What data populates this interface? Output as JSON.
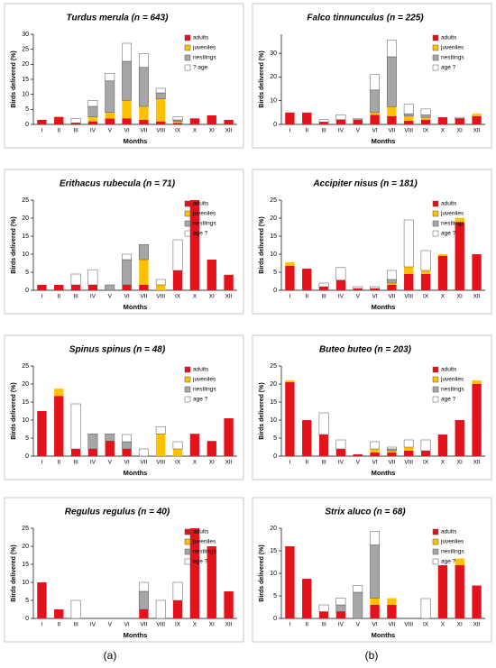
{
  "chart_data": [
    {
      "type": "bar",
      "stacked": true,
      "title": "Turdus merula (n = 643)",
      "ylabel": "Birds delivered (%)",
      "xlabel": "Months",
      "categories": [
        "I",
        "II",
        "III",
        "IV",
        "V",
        "VI",
        "VII",
        "VIII",
        "IX",
        "X",
        "XI",
        "XII"
      ],
      "ylim": [
        0,
        30
      ],
      "yticks": [
        0,
        5,
        10,
        15,
        20,
        25,
        30
      ],
      "series": [
        {
          "name": "adults",
          "color": "#e3121b",
          "values": [
            1.5,
            2.5,
            0.5,
            1,
            2,
            2,
            1.5,
            1,
            0.5,
            2,
            3,
            1.5
          ]
        },
        {
          "name": "juveniles",
          "color": "#ffc000",
          "values": [
            0,
            0,
            0,
            1.5,
            2,
            6,
            4.5,
            7.5,
            0.5,
            0,
            0,
            0
          ]
        },
        {
          "name": "nestlings",
          "color": "#a6a6a6",
          "values": [
            0,
            0,
            0,
            3.5,
            10.5,
            13,
            13,
            2,
            0.5,
            0,
            0,
            0
          ]
        },
        {
          "name": "? age",
          "color": "#ffffff",
          "values": [
            0,
            0,
            1.5,
            2,
            2.5,
            6,
            4.5,
            1.5,
            1,
            0,
            0,
            0
          ]
        }
      ]
    },
    {
      "type": "bar",
      "stacked": true,
      "title": "Falco tinnunculus (n = 225)",
      "ylabel": "Birds delivered (%)",
      "xlabel": "Months",
      "categories": [
        "I",
        "II",
        "III",
        "IV",
        "V",
        "VI",
        "VII",
        "VIII",
        "IX",
        "X",
        "XI",
        "XII"
      ],
      "ylim": [
        0,
        38
      ],
      "yticks": [
        0,
        10,
        20,
        30
      ],
      "series": [
        {
          "name": "adults",
          "color": "#e3121b",
          "values": [
            5,
            5,
            1,
            2,
            2,
            4,
            3.5,
            1.5,
            2,
            3,
            2.5,
            3.5
          ]
        },
        {
          "name": "juveniles",
          "color": "#ffc000",
          "values": [
            0,
            0,
            0,
            0,
            0,
            1,
            4,
            2,
            1,
            0,
            0,
            1
          ]
        },
        {
          "name": "nestlings",
          "color": "#a6a6a6",
          "values": [
            0,
            0,
            0,
            0,
            0,
            9.5,
            21,
            1,
            1,
            0,
            0,
            0
          ]
        },
        {
          "name": "age ?",
          "color": "#ffffff",
          "values": [
            0,
            0,
            1,
            2,
            0.5,
            6.5,
            7,
            4,
            2.5,
            0,
            0.5,
            0
          ]
        }
      ]
    },
    {
      "type": "bar",
      "stacked": true,
      "title": "Erithacus  rubecula (n = 71)",
      "ylabel": "Birds delivered (%)",
      "xlabel": "Months",
      "categories": [
        "I",
        "II",
        "III",
        "IV",
        "V",
        "VI",
        "VII",
        "VIII",
        "IX",
        "X",
        "XI",
        "XII"
      ],
      "ylim": [
        0,
        25
      ],
      "yticks": [
        0,
        5,
        10,
        15,
        20,
        25
      ],
      "series": [
        {
          "name": "adults",
          "color": "#e3121b",
          "values": [
            1.5,
            1.5,
            1.5,
            1.5,
            0,
            1.5,
            1.5,
            0,
            5.5,
            25,
            8.5,
            4.3
          ]
        },
        {
          "name": "juveniles",
          "color": "#ffc000",
          "values": [
            0,
            0,
            0,
            0,
            0,
            0,
            7,
            1.5,
            0,
            0,
            0,
            0
          ]
        },
        {
          "name": "nestlings",
          "color": "#a6a6a6",
          "values": [
            0,
            0,
            0,
            0,
            1.5,
            7,
            4.2,
            0,
            0,
            0,
            0,
            0
          ]
        },
        {
          "name": "age ?",
          "color": "#ffffff",
          "values": [
            0,
            0,
            3,
            4.2,
            0,
            1.5,
            0,
            1.5,
            8.5,
            0,
            0,
            0
          ]
        }
      ]
    },
    {
      "type": "bar",
      "stacked": true,
      "title": "Accipiter nisus (n = 181)",
      "ylabel": "Birds delivered (%)",
      "xlabel": "Months",
      "categories": [
        "I",
        "II",
        "III",
        "IV",
        "V",
        "VI",
        "VII",
        "VIII",
        "IX",
        "X",
        "XI",
        "XII"
      ],
      "ylim": [
        0,
        25
      ],
      "yticks": [
        0,
        5,
        10,
        15,
        20,
        25
      ],
      "series": [
        {
          "name": "adults",
          "color": "#e3121b",
          "values": [
            6.8,
            6,
            1,
            2.8,
            0.5,
            0.5,
            1.5,
            4.5,
            4.5,
            9.5,
            18.8,
            10
          ]
        },
        {
          "name": "juveniles",
          "color": "#ffc000",
          "values": [
            1,
            0,
            0,
            0,
            0,
            0,
            0.5,
            2,
            1,
            0.5,
            1.3,
            0
          ]
        },
        {
          "name": "nestlings",
          "color": "#a6a6a6",
          "values": [
            0,
            0,
            0,
            0,
            0,
            0,
            1,
            0,
            0,
            0,
            0,
            0
          ]
        },
        {
          "name": "age ?",
          "color": "#ffffff",
          "values": [
            0,
            0,
            1,
            3.5,
            0.5,
            0.5,
            2.5,
            13,
            5.5,
            0,
            0,
            0
          ]
        }
      ]
    },
    {
      "type": "bar",
      "stacked": true,
      "title": "Spinus spinus (n = 48)",
      "ylabel": "Birds delivered (%)",
      "xlabel": "Months",
      "categories": [
        "I",
        "II",
        "III",
        "IV",
        "V",
        "VI",
        "VII",
        "VIII",
        "IX",
        "X",
        "XI",
        "XII"
      ],
      "ylim": [
        0,
        25
      ],
      "yticks": [
        0,
        5,
        10,
        15,
        20,
        25
      ],
      "series": [
        {
          "name": "adults",
          "color": "#e3121b",
          "values": [
            12.5,
            16.7,
            2,
            2,
            4.2,
            2,
            0,
            0,
            0,
            6.2,
            4.2,
            10.5
          ]
        },
        {
          "name": "juveniles",
          "color": "#ffc000",
          "values": [
            0,
            2,
            0,
            0,
            0,
            0,
            0,
            6.2,
            2,
            0,
            0,
            0
          ]
        },
        {
          "name": "nestlings",
          "color": "#a6a6a6",
          "values": [
            0,
            0,
            0,
            4.2,
            2,
            2,
            0,
            0,
            0,
            0,
            0,
            0
          ]
        },
        {
          "name": "age ?",
          "color": "#ffffff",
          "values": [
            0,
            0,
            12.5,
            0,
            0,
            2,
            2,
            2,
            2,
            0,
            0,
            0
          ]
        }
      ]
    },
    {
      "type": "bar",
      "stacked": true,
      "title": "Buteo buteo (n = 203)",
      "ylabel": "Birds delivered (%)",
      "xlabel": "Months",
      "categories": [
        "I",
        "II",
        "III",
        "IV",
        "V",
        "VI",
        "VII",
        "VIII",
        "IX",
        "X",
        "XI",
        "XII"
      ],
      "ylim": [
        0,
        25
      ],
      "yticks": [
        0,
        5,
        10,
        15,
        20,
        25
      ],
      "series": [
        {
          "name": "adults",
          "color": "#e3121b",
          "values": [
            20.5,
            10,
            6,
            2,
            0.5,
            1,
            1,
            1.5,
            1.5,
            6,
            10,
            20
          ]
        },
        {
          "name": "juveniles",
          "color": "#ffc000",
          "values": [
            0.5,
            0,
            0,
            0,
            0,
            1,
            0.5,
            1,
            0,
            0,
            0,
            1
          ]
        },
        {
          "name": "nestlings",
          "color": "#a6a6a6",
          "values": [
            0,
            0,
            0,
            0,
            0,
            0,
            0.5,
            0,
            0,
            0,
            0,
            0
          ]
        },
        {
          "name": "age ?",
          "color": "#ffffff",
          "values": [
            0,
            0,
            6,
            2.5,
            0,
            2,
            0.5,
            2,
            3,
            0,
            0,
            0
          ]
        }
      ]
    },
    {
      "type": "bar",
      "stacked": true,
      "title": "Regulus regulus (n = 40)",
      "ylabel": "Birds delivered (%)",
      "xlabel": "Months",
      "categories": [
        "I",
        "II",
        "III",
        "IV",
        "V",
        "VI",
        "VII",
        "VIII",
        "IX",
        "X",
        "XI",
        "XII"
      ],
      "ylim": [
        0,
        25
      ],
      "yticks": [
        0,
        5,
        10,
        15,
        20,
        25
      ],
      "series": [
        {
          "name": "adults",
          "color": "#e3121b",
          "values": [
            10,
            2.5,
            0,
            0,
            0,
            0,
            2.5,
            0,
            5,
            25,
            20,
            7.5
          ]
        },
        {
          "name": "juveniles",
          "color": "#ffc000",
          "values": [
            0,
            0,
            0,
            0,
            0,
            0,
            0,
            0,
            0,
            0,
            0,
            0
          ]
        },
        {
          "name": "nestlings",
          "color": "#a6a6a6",
          "values": [
            0,
            0,
            0,
            0,
            0,
            0,
            5,
            0,
            0,
            0,
            0,
            0
          ]
        },
        {
          "name": "age ?",
          "color": "#ffffff",
          "values": [
            0,
            0,
            5,
            0,
            0,
            0,
            2.5,
            5,
            5,
            0,
            0,
            0
          ]
        }
      ]
    },
    {
      "type": "bar",
      "stacked": true,
      "title": "Strix aluco (n = 68)",
      "ylabel": "Birds delivered (%)",
      "xlabel": "Months",
      "categories": [
        "I",
        "II",
        "III",
        "IV",
        "V",
        "VI",
        "VII",
        "VIII",
        "IX",
        "X",
        "XI",
        "XII"
      ],
      "ylim": [
        0,
        20
      ],
      "yticks": [
        0,
        5,
        10,
        15,
        20
      ],
      "series": [
        {
          "name": "adults",
          "color": "#e3121b",
          "values": [
            16,
            8.8,
            1.5,
            1.5,
            0,
            3,
            3,
            0,
            0,
            11.8,
            11.8,
            7.3
          ]
        },
        {
          "name": "juveniles",
          "color": "#ffc000",
          "values": [
            0,
            0,
            0,
            0,
            0,
            1.5,
            1.5,
            0,
            0,
            0,
            1.5,
            0
          ]
        },
        {
          "name": "nestlings",
          "color": "#a6a6a6",
          "values": [
            0,
            0,
            0,
            1.5,
            5.8,
            11.8,
            0,
            0,
            0,
            0,
            0,
            0
          ]
        },
        {
          "name": "age ?",
          "color": "#ffffff",
          "values": [
            0,
            0,
            1.5,
            1.5,
            1.5,
            3,
            0,
            0,
            4.4,
            0,
            0,
            0
          ]
        }
      ]
    }
  ],
  "panel_labels": [
    "(a)",
    "(b)"
  ]
}
